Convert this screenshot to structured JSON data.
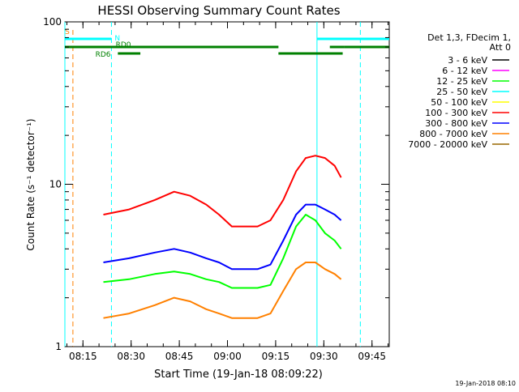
{
  "chart_data": {
    "type": "line",
    "title": "HESSI Observing Summary Count Rates",
    "xlabel": "Start Time (19-Jan-18 08:09:22)",
    "ylabel": "Count Rate (s⁻¹ detector⁻¹)",
    "x_ticks": [
      "08:15",
      "08:30",
      "08:45",
      "09:00",
      "09:15",
      "09:30",
      "09:45"
    ],
    "x_tick_minutes": [
      5.63,
      20.63,
      35.63,
      50.63,
      65.63,
      80.63,
      95.63
    ],
    "y_ticks": [
      "1",
      "10",
      "100"
    ],
    "y_tick_values": [
      1,
      10,
      100
    ],
    "xlim_minutes": [
      0,
      101
    ],
    "ylim": [
      1,
      100
    ],
    "y_scale": "log",
    "legend": {
      "header": [
        "Det 1,3, FDecim 1,",
        "Att 0"
      ],
      "entries": [
        {
          "label": "3 - 6 keV",
          "color": "#000000"
        },
        {
          "label": "6 - 12 keV",
          "color": "#ff00ff"
        },
        {
          "label": "12 - 25 keV",
          "color": "#00ff00"
        },
        {
          "label": "25 - 50 keV",
          "color": "#00ffff"
        },
        {
          "label": "50 - 100 keV",
          "color": "#ffff00"
        },
        {
          "label": "100 - 300 keV",
          "color": "#ff0000"
        },
        {
          "label": "300 - 800 keV",
          "color": "#0000ff"
        },
        {
          "label": "800 - 7000 keV",
          "color": "#ff8000"
        },
        {
          "label": "7000 - 20000 keV",
          "color": "#996600"
        }
      ],
      "placement": "right"
    },
    "flag_labels": {
      "saa": "S",
      "night": "N",
      "rd0": "RD0",
      "rd6": "RD6"
    },
    "flags": {
      "night": [
        [
          0,
          14.5
        ],
        [
          78.5,
          101
        ]
      ],
      "rd0": [
        [
          0,
          66.5
        ],
        [
          82.5,
          87
        ],
        [
          87,
          101
        ]
      ],
      "rd6": [
        [
          16.5,
          23.5
        ],
        [
          66.5,
          86.5
        ]
      ]
    },
    "vlines_solid": {
      "color": "#00ffff",
      "minutes": [
        0,
        78.5
      ]
    },
    "vlines_dashed": {
      "cyan_minutes": [
        14.5,
        92.0
      ],
      "orange_minutes": [
        2.5
      ]
    },
    "series": [
      {
        "name": "100 - 300 keV",
        "color": "#ff0000",
        "x": [
          12,
          20,
          28,
          34,
          39,
          44,
          48,
          52,
          56,
          60,
          64,
          68,
          72,
          75,
          78,
          81,
          84,
          86
        ],
        "values": [
          6.5,
          7.0,
          8.0,
          9.0,
          8.5,
          7.5,
          6.5,
          5.5,
          5.5,
          5.5,
          6.0,
          8.0,
          12.0,
          14.5,
          15.0,
          14.5,
          13.0,
          11.0
        ]
      },
      {
        "name": "300 - 800 keV",
        "color": "#0000ff",
        "x": [
          12,
          20,
          28,
          34,
          39,
          44,
          48,
          52,
          56,
          60,
          64,
          68,
          72,
          75,
          78,
          81,
          84,
          86
        ],
        "values": [
          3.3,
          3.5,
          3.8,
          4.0,
          3.8,
          3.5,
          3.3,
          3.0,
          3.0,
          3.0,
          3.2,
          4.5,
          6.5,
          7.5,
          7.5,
          7.0,
          6.5,
          6.0
        ]
      },
      {
        "name": "12 - 25 keV",
        "color": "#00ff00",
        "x": [
          12,
          20,
          28,
          34,
          39,
          44,
          48,
          52,
          56,
          60,
          64,
          68,
          72,
          75,
          78,
          81,
          84,
          86
        ],
        "values": [
          2.5,
          2.6,
          2.8,
          2.9,
          2.8,
          2.6,
          2.5,
          2.3,
          2.3,
          2.3,
          2.4,
          3.5,
          5.5,
          6.5,
          6.0,
          5.0,
          4.5,
          4.0
        ]
      },
      {
        "name": "800 - 7000 keV",
        "color": "#ff8000",
        "x": [
          12,
          20,
          28,
          34,
          39,
          44,
          48,
          52,
          56,
          60,
          64,
          68,
          72,
          75,
          78,
          81,
          84,
          86
        ],
        "values": [
          1.5,
          1.6,
          1.8,
          2.0,
          1.9,
          1.7,
          1.6,
          1.5,
          1.5,
          1.5,
          1.6,
          2.2,
          3.0,
          3.3,
          3.3,
          3.0,
          2.8,
          2.6
        ]
      }
    ]
  },
  "footer": {
    "timestamp": "19-Jan-2018 08:10"
  }
}
